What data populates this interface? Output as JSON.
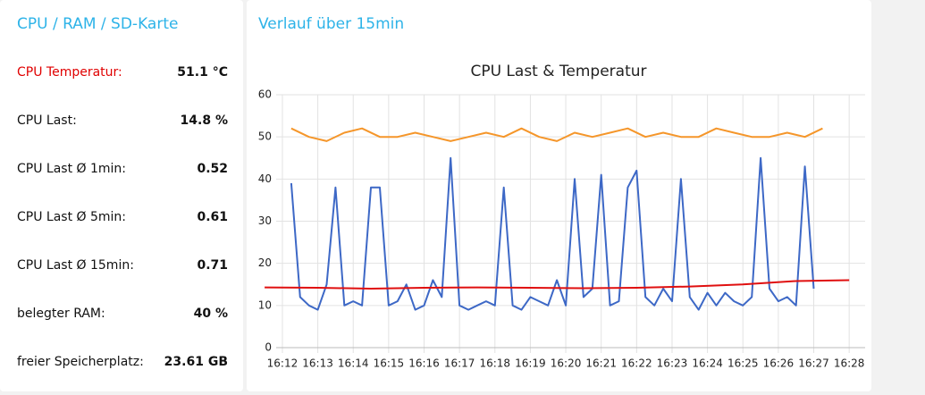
{
  "left_panel": {
    "title": "CPU / RAM / SD-Karte",
    "rows": [
      {
        "label": "CPU Temperatur:",
        "value": "51.1 °C"
      },
      {
        "label": "CPU Last:",
        "value": "14.8 %"
      },
      {
        "label": "CPU Last Ø 1min:",
        "value": "0.52"
      },
      {
        "label": "CPU Last Ø 5min:",
        "value": "0.61"
      },
      {
        "label": "CPU Last Ø 15min:",
        "value": "0.71"
      },
      {
        "label": "belegter RAM:",
        "value": "40 %"
      },
      {
        "label": "freier Speicherplatz:",
        "value": "23.61 GB"
      }
    ]
  },
  "right_panel": {
    "title": "Verlauf über 15min"
  },
  "chart_data": {
    "type": "line",
    "title": "CPU Last & Temperatur",
    "grid": true,
    "xlim": [
      971.32,
      988.45
    ],
    "xticks": [
      {
        "value": 972,
        "label": "16:12"
      },
      {
        "value": 973,
        "label": "16:13"
      },
      {
        "value": 974,
        "label": "16:14"
      },
      {
        "value": 975,
        "label": "16:15"
      },
      {
        "value": 976,
        "label": "16:16"
      },
      {
        "value": 977,
        "label": "16:17"
      },
      {
        "value": 978,
        "label": "16:18"
      },
      {
        "value": 979,
        "label": "16:19"
      },
      {
        "value": 980,
        "label": "16:20"
      },
      {
        "value": 981,
        "label": "16:21"
      },
      {
        "value": 982,
        "label": "16:22"
      },
      {
        "value": 983,
        "label": "16:23"
      },
      {
        "value": 984,
        "label": "16:24"
      },
      {
        "value": 985,
        "label": "16:25"
      },
      {
        "value": 986,
        "label": "16:26"
      },
      {
        "value": 987,
        "label": "16:27"
      },
      {
        "value": 988,
        "label": "16:28"
      }
    ],
    "ylim": [
      0,
      60
    ],
    "yticks": [
      0,
      10,
      20,
      30,
      40,
      50,
      60
    ],
    "series": [
      {
        "color": "#3d68c6",
        "x": [
          972.25,
          972.5,
          972.75,
          973,
          973.25,
          973.5,
          973.75,
          974,
          974.25,
          974.5,
          974.75,
          975,
          975.25,
          975.5,
          975.75,
          976,
          976.25,
          976.5,
          976.75,
          977,
          977.25,
          977.5,
          977.75,
          978,
          978.25,
          978.5,
          978.75,
          979,
          979.25,
          979.5,
          979.75,
          980,
          980.25,
          980.5,
          980.75,
          981,
          981.25,
          981.5,
          981.75,
          982,
          982.25,
          982.5,
          982.75,
          983,
          983.25,
          983.5,
          983.75,
          984,
          984.25,
          984.5,
          984.75,
          985,
          985.25,
          985.5,
          985.75,
          986,
          986.25,
          986.5,
          986.75,
          987
        ],
        "values": [
          39,
          12,
          10,
          9,
          15,
          38,
          10,
          11,
          10,
          38,
          38,
          10,
          11,
          15,
          9,
          10,
          16,
          12,
          45,
          10,
          9,
          10,
          11,
          10,
          38,
          10,
          9,
          12,
          11,
          10,
          16,
          10,
          40,
          12,
          14,
          41,
          10,
          11,
          38,
          42,
          12,
          10,
          14,
          11,
          40,
          12,
          9,
          13,
          10,
          13,
          11,
          10,
          12,
          45,
          14,
          11,
          12,
          10,
          43,
          14
        ]
      },
      {
        "color": "#f5962a",
        "x": [
          972.25,
          972.75,
          973.25,
          973.75,
          974.25,
          974.75,
          975.25,
          975.75,
          976.25,
          976.75,
          977.25,
          977.75,
          978.25,
          978.75,
          979.25,
          979.75,
          980.25,
          980.75,
          981.25,
          981.75,
          982.25,
          982.75,
          983.25,
          983.75,
          984.25,
          984.75,
          985.25,
          985.75,
          986.25,
          986.75,
          987.25
        ],
        "values": [
          52,
          50,
          49,
          51,
          52,
          50,
          50,
          51,
          50,
          49,
          50,
          51,
          50,
          52,
          50,
          49,
          51,
          50,
          51,
          52,
          50,
          51,
          50,
          50,
          52,
          51,
          50,
          50,
          51,
          50,
          52
        ]
      },
      {
        "color": "#e01010",
        "x": [
          971.5,
          973,
          974.5,
          976,
          977.5,
          979,
          980.5,
          982,
          983.5,
          985,
          986.5,
          988
        ],
        "values": [
          14.3,
          14.2,
          14,
          14.2,
          14.3,
          14.2,
          14.1,
          14.2,
          14.5,
          15,
          15.8,
          16
        ]
      }
    ]
  }
}
